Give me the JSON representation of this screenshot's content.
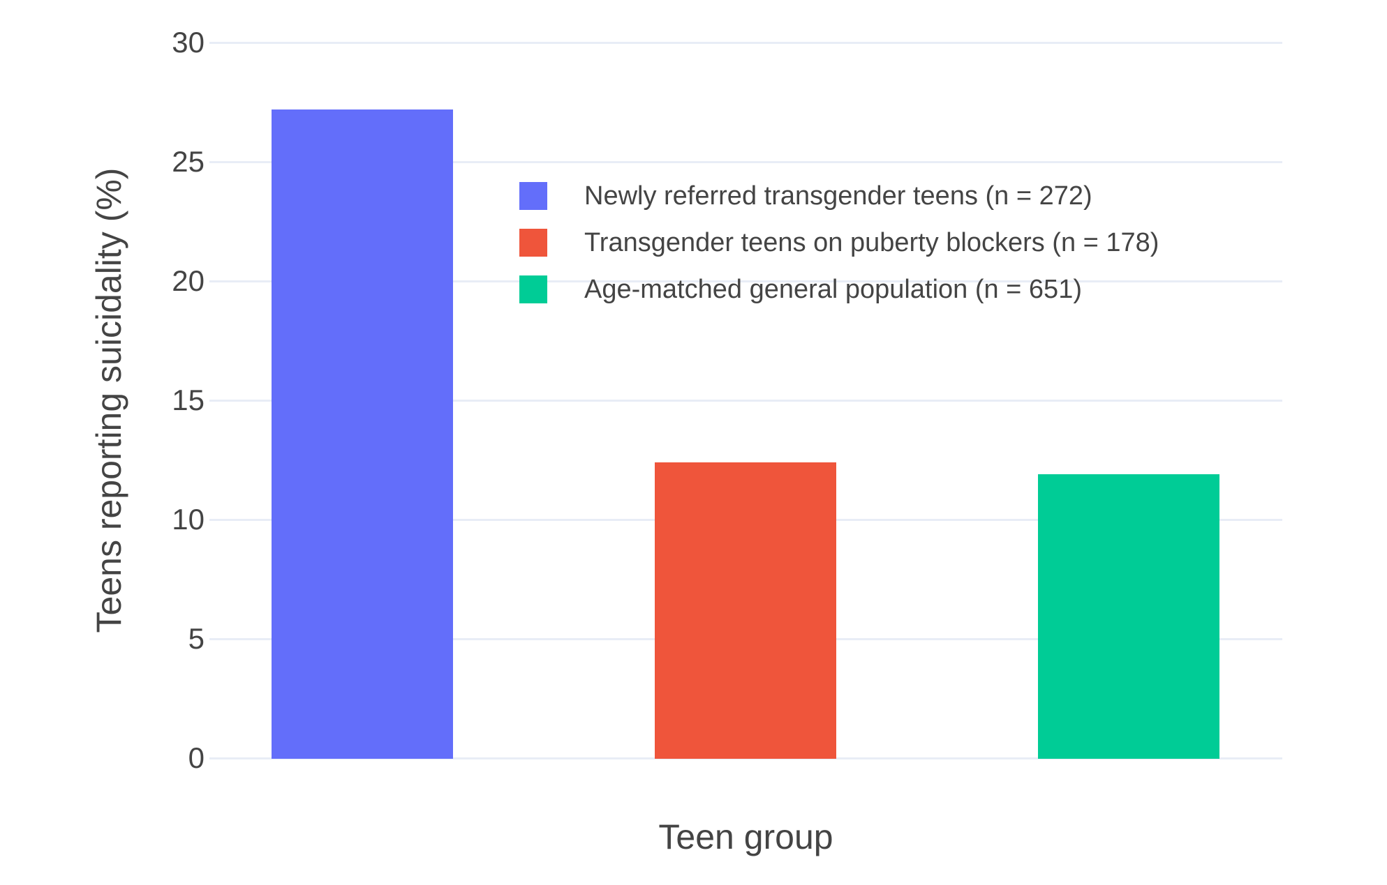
{
  "chart_data": {
    "type": "bar",
    "title": "",
    "xlabel": "Teen group",
    "ylabel": "Teens reporting suicidality (%)",
    "ylim": [
      0,
      30
    ],
    "yticks": [
      0,
      5,
      10,
      15,
      20,
      25,
      30
    ],
    "grid": true,
    "legend_position": "inside-top",
    "background_color": "#FFFFFF",
    "gridline_color": "#E8EDF6",
    "text_color": "#444444",
    "series": [
      {
        "name": "Newly referred transgender teens (n = 272)",
        "value": 27.2,
        "color": "#636EFA"
      },
      {
        "name": "Transgender teens on puberty blockers (n = 178)",
        "value": 12.4,
        "color": "#EF553B"
      },
      {
        "name": "Age-matched general population (n = 651)",
        "value": 11.9,
        "color": "#00CC96"
      }
    ]
  }
}
